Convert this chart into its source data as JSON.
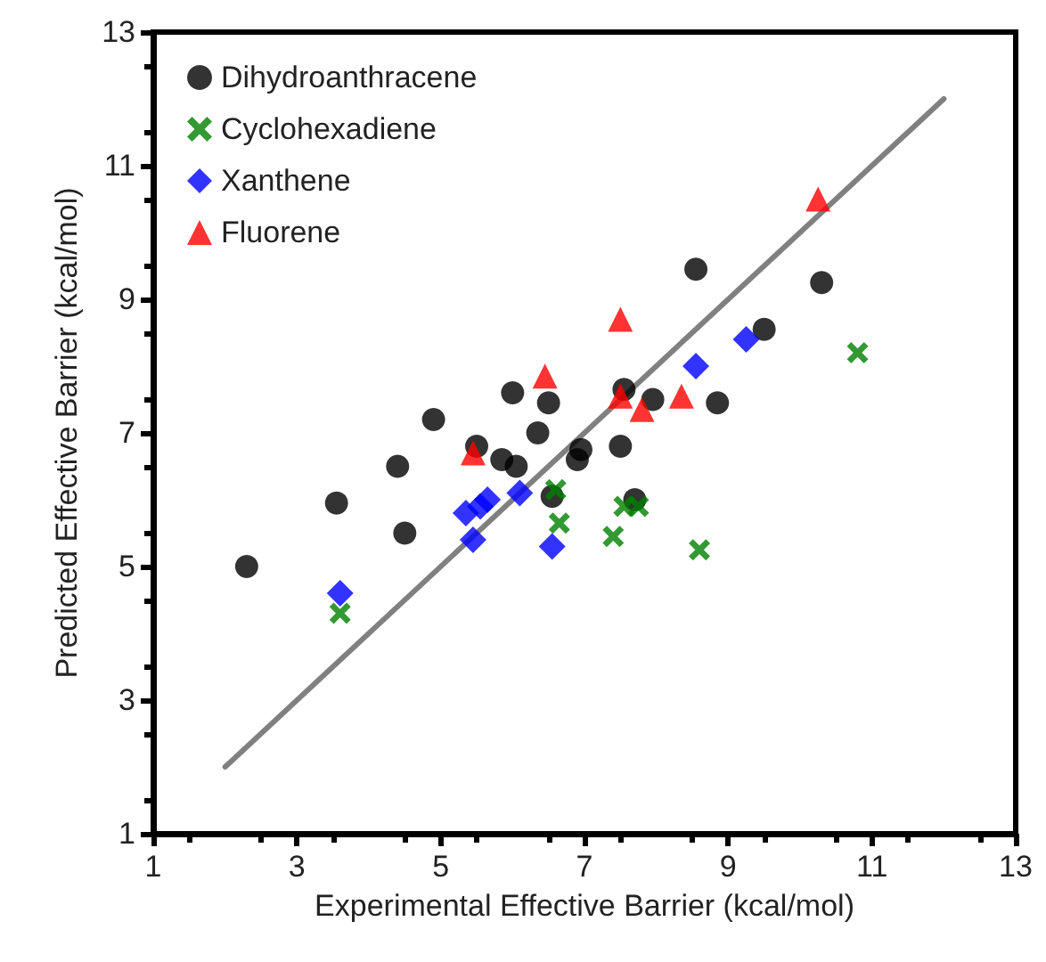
{
  "chart_data": {
    "type": "scatter",
    "xlabel": "Experimental Effective Barrier (kcal/mol)",
    "ylabel": "Predicted Effective Barrier (kcal/mol)",
    "xlim": [
      1,
      13
    ],
    "ylim": [
      1,
      13
    ],
    "xticks": [
      1,
      3,
      5,
      7,
      9,
      11,
      13
    ],
    "yticks": [
      1,
      3,
      5,
      7,
      9,
      11,
      13
    ],
    "grid": false,
    "legend": "top left",
    "series": [
      {
        "name": "Dihydroanthracene",
        "color": "#000000",
        "marker": "circle",
        "x": [
          2.3,
          3.55,
          4.4,
          4.5,
          4.9,
          5.5,
          5.85,
          6.0,
          6.05,
          6.35,
          6.5,
          6.55,
          6.9,
          6.95,
          7.5,
          7.55,
          7.7,
          7.95,
          8.55,
          8.85,
          9.5,
          10.3
        ],
        "values": [
          5.0,
          5.95,
          6.5,
          5.5,
          7.2,
          6.8,
          6.6,
          7.6,
          6.5,
          7.0,
          7.45,
          6.05,
          6.6,
          6.75,
          6.8,
          7.65,
          6.0,
          7.5,
          9.45,
          7.45,
          8.55,
          9.25
        ]
      },
      {
        "name": "Cyclohexadiene",
        "color": "#008000",
        "marker": "cross",
        "x": [
          3.6,
          5.4,
          6.6,
          6.65,
          7.4,
          7.55,
          7.75,
          8.6,
          10.8
        ],
        "values": [
          4.3,
          null,
          6.15,
          5.65,
          5.45,
          5.9,
          5.9,
          5.25,
          8.2
        ]
      },
      {
        "name": "Xanthene",
        "color": "#0000ff",
        "marker": "diamond",
        "x": [
          3.6,
          5.35,
          5.45,
          5.55,
          5.65,
          6.1,
          6.55,
          8.55,
          9.25
        ],
        "values": [
          4.6,
          5.8,
          5.4,
          5.9,
          6.0,
          6.1,
          5.3,
          8.0,
          8.4
        ]
      },
      {
        "name": "Fluorene",
        "color": "#ff0000",
        "marker": "triangle",
        "x": [
          5.45,
          6.45,
          7.5,
          7.5,
          7.8,
          8.35,
          10.25
        ],
        "values": [
          6.7,
          7.85,
          8.7,
          7.55,
          7.35,
          7.55,
          10.5
        ]
      },
      {
        "type": "line",
        "color": "#808080",
        "marker": "none",
        "line_style": "solid",
        "x": [
          2,
          12
        ],
        "values": [
          2,
          12
        ]
      }
    ]
  }
}
